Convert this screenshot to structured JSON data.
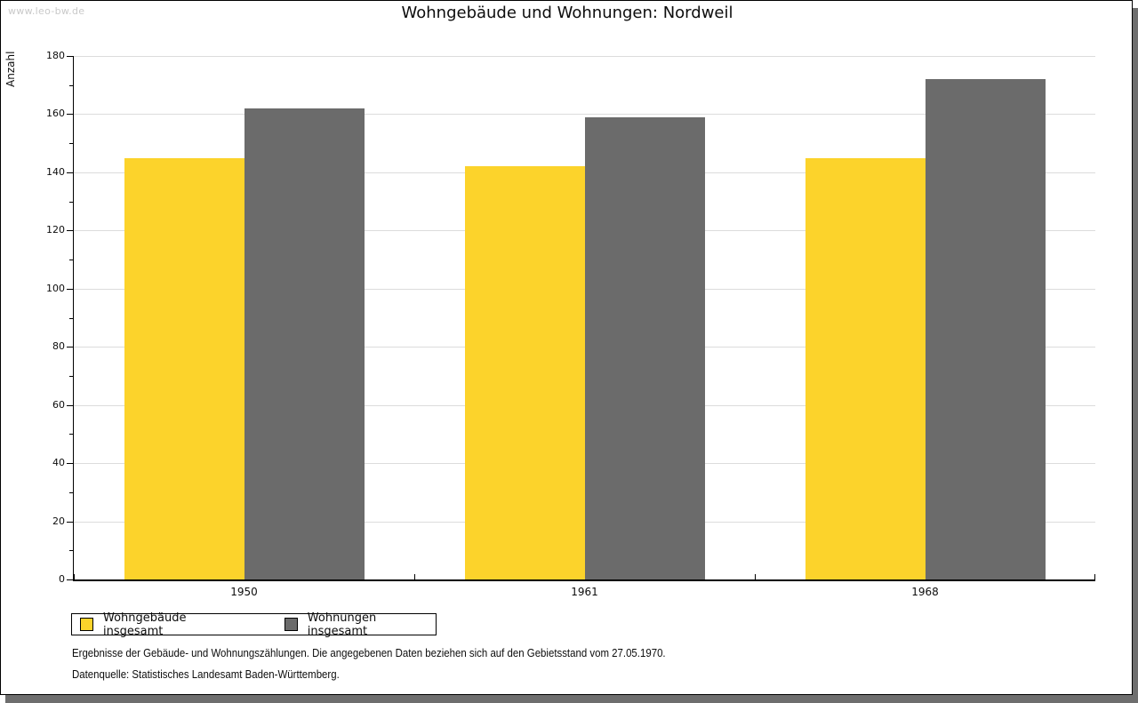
{
  "page": {
    "watermark": "www.leo-bw.de",
    "title": "Wohngebäude und Wohnungen: Nordweil",
    "footnote_line1": "Ergebnisse der Gebäude- und Wohnungszählungen. Die angegebenen Daten beziehen sich auf den Gebietsstand vom 27.05.1970.",
    "footnote_line2": "Datenquelle: Statistisches Landesamt Baden-Württemberg."
  },
  "chart_data": {
    "type": "bar",
    "title": "Wohngebäude und Wohnungen: Nordweil",
    "xlabel": "",
    "ylabel": "Anzahl",
    "categories": [
      "1950",
      "1961",
      "1968"
    ],
    "series": [
      {
        "name": "Wohngebäude insgesamt",
        "color": "#FCD32B",
        "values": [
          145,
          142,
          145
        ]
      },
      {
        "name": "Wohnungen insgesamt",
        "color": "#6B6B6B",
        "values": [
          162,
          159,
          172
        ]
      }
    ],
    "ylim": [
      0,
      180
    ],
    "ytick_major": 20,
    "ytick_minor": 10,
    "grid": true,
    "gridline_color": "#dcdcdc",
    "legend_position": "bottom-left"
  },
  "colors": {
    "page_background": "#ffffff",
    "frame_border": "#000000",
    "frame_shadow": "#6e6e6e",
    "watermark_text": "#c9c9c9",
    "bar_yellow": "#FCD32B",
    "bar_gray": "#6B6B6B",
    "gridline": "#dcdcdc"
  }
}
